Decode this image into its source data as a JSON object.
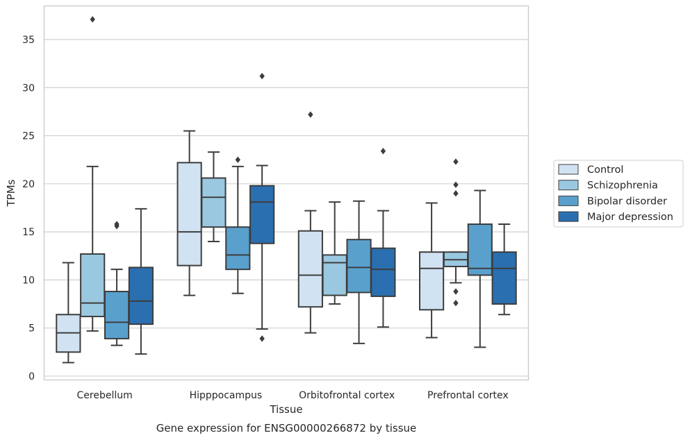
{
  "chart_data": {
    "type": "box",
    "xlabel": "Tissue",
    "ylabel": "TPMs",
    "caption": "Gene expression for ENSG00000266872 by tissue",
    "ylim": [
      -0.4,
      38.5
    ],
    "yticks": [
      0,
      5,
      10,
      15,
      20,
      25,
      30,
      35
    ],
    "grid": "horizontal",
    "legend_placement": "right",
    "categories": [
      "Cerebellum",
      "Hipppocampus",
      "Orbitofrontal cortex",
      "Prefrontal cortex"
    ],
    "series": [
      {
        "name": "Control",
        "color": "#d1e2f2",
        "boxes": [
          {
            "whislo": 1.4,
            "q1": 2.5,
            "med": 4.5,
            "q3": 6.4,
            "whishi": 11.8,
            "fliers": []
          },
          {
            "whislo": 8.4,
            "q1": 11.5,
            "med": 15.0,
            "q3": 22.2,
            "whishi": 25.5,
            "fliers": []
          },
          {
            "whislo": 4.5,
            "q1": 7.2,
            "med": 10.5,
            "q3": 15.1,
            "whishi": 17.2,
            "fliers": [
              27.2
            ]
          },
          {
            "whislo": 4.0,
            "q1": 6.9,
            "med": 11.2,
            "q3": 12.9,
            "whishi": 18.0,
            "fliers": []
          }
        ]
      },
      {
        "name": "Schizophrenia",
        "color": "#9ac8e0",
        "boxes": [
          {
            "whislo": 4.7,
            "q1": 6.2,
            "med": 7.6,
            "q3": 12.7,
            "whishi": 21.8,
            "fliers": [
              37.1
            ]
          },
          {
            "whislo": 14.0,
            "q1": 15.5,
            "med": 18.6,
            "q3": 20.6,
            "whishi": 23.3,
            "fliers": []
          },
          {
            "whislo": 7.5,
            "q1": 8.4,
            "med": 11.8,
            "q3": 12.6,
            "whishi": 18.1,
            "fliers": []
          },
          {
            "whislo": 9.7,
            "q1": 11.4,
            "med": 12.1,
            "q3": 12.9,
            "whishi": 12.9,
            "fliers": [
              22.3,
              19.9,
              19.0,
              8.8,
              7.6
            ]
          }
        ]
      },
      {
        "name": "Bipolar disorder",
        "color": "#5aa0cd",
        "boxes": [
          {
            "whislo": 3.2,
            "q1": 3.9,
            "med": 5.6,
            "q3": 8.8,
            "whishi": 11.1,
            "fliers": [
              15.8,
              15.6
            ]
          },
          {
            "whislo": 8.6,
            "q1": 11.1,
            "med": 12.6,
            "q3": 15.5,
            "whishi": 21.8,
            "fliers": [
              22.5
            ]
          },
          {
            "whislo": 3.4,
            "q1": 8.7,
            "med": 11.3,
            "q3": 14.2,
            "whishi": 18.2,
            "fliers": []
          },
          {
            "whislo": 3.0,
            "q1": 10.5,
            "med": 11.2,
            "q3": 15.8,
            "whishi": 19.3,
            "fliers": []
          }
        ]
      },
      {
        "name": "Major depression",
        "color": "#2a6faf",
        "boxes": [
          {
            "whislo": 2.3,
            "q1": 5.4,
            "med": 7.8,
            "q3": 11.3,
            "whishi": 17.4,
            "fliers": []
          },
          {
            "whislo": 4.9,
            "q1": 13.8,
            "med": 18.1,
            "q3": 19.8,
            "whishi": 21.9,
            "fliers": [
              31.2,
              3.9
            ]
          },
          {
            "whislo": 5.1,
            "q1": 8.3,
            "med": 11.1,
            "q3": 13.3,
            "whishi": 17.2,
            "fliers": [
              23.4
            ]
          },
          {
            "whislo": 6.4,
            "q1": 7.5,
            "med": 11.2,
            "q3": 12.9,
            "whishi": 15.8,
            "fliers": []
          }
        ]
      }
    ]
  }
}
